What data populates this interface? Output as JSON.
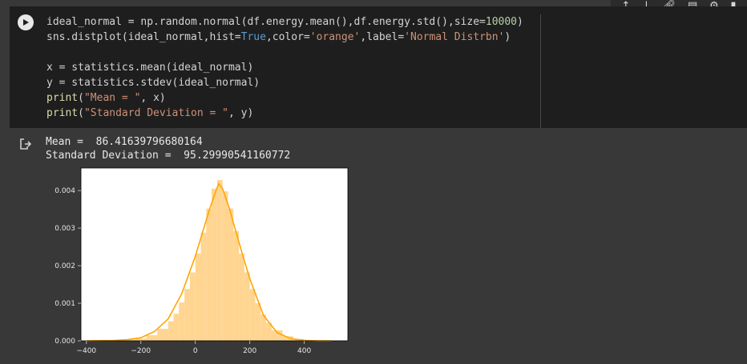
{
  "toolbar": {
    "icons": [
      "arrow-up-icon",
      "arrow-down-icon",
      "link-icon",
      "comment-icon",
      "gear-icon",
      "trash-icon"
    ]
  },
  "code": {
    "line1": [
      "ideal_normal = np.random.normal(df.energy.mean(),df.energy.std(),size=",
      "10000",
      ")"
    ],
    "line2": [
      "sns.distplot(ideal_normal,hist=",
      "True",
      ",color=",
      "'orange'",
      ",label=",
      "'Normal Distrbn'",
      ")"
    ],
    "line4": "x = statistics.mean(ideal_normal)",
    "line5": "y = statistics.stdev(ideal_normal)",
    "line6": [
      "print",
      "(",
      "\"Mean = \"",
      ", x)"
    ],
    "line7": [
      "print",
      "(",
      "\"Standard Deviation = \"",
      ", y)"
    ]
  },
  "output": {
    "mean_line": "Mean =  86.41639796680164",
    "std_line": "Standard Deviation =  95.29990541160772"
  },
  "chart_data": {
    "type": "bar",
    "title": "",
    "xlabel": "",
    "ylabel": "",
    "xlim": [
      -420,
      560
    ],
    "ylim": [
      0,
      0.0046
    ],
    "xticks": [
      -400,
      -200,
      0,
      200,
      400
    ],
    "xtick_labels": [
      "−400",
      "−200",
      "0",
      "200",
      "400"
    ],
    "yticks": [
      0.0,
      0.001,
      0.002,
      0.003,
      0.004
    ],
    "ytick_labels": [
      "0.000",
      "0.001",
      "0.002",
      "0.003",
      "0.004"
    ],
    "grid": false,
    "hist_color": "#ffd591",
    "kde_color": "#ffa500",
    "hist_bins": [
      {
        "x0": -300,
        "x1": -260,
        "y": 1e-05
      },
      {
        "x0": -260,
        "x1": -220,
        "y": 3e-05
      },
      {
        "x0": -220,
        "x1": -180,
        "y": 6e-05
      },
      {
        "x0": -180,
        "x1": -140,
        "y": 0.00015
      },
      {
        "x0": -140,
        "x1": -100,
        "y": 0.00032
      },
      {
        "x0": -100,
        "x1": -80,
        "y": 0.00052
      },
      {
        "x0": -80,
        "x1": -60,
        "y": 0.00072
      },
      {
        "x0": -60,
        "x1": -40,
        "y": 0.00102
      },
      {
        "x0": -40,
        "x1": -20,
        "y": 0.00138
      },
      {
        "x0": -20,
        "x1": 0,
        "y": 0.00182
      },
      {
        "x0": 0,
        "x1": 20,
        "y": 0.00232
      },
      {
        "x0": 20,
        "x1": 40,
        "y": 0.00288
      },
      {
        "x0": 40,
        "x1": 60,
        "y": 0.00352
      },
      {
        "x0": 60,
        "x1": 80,
        "y": 0.00405
      },
      {
        "x0": 80,
        "x1": 100,
        "y": 0.00428
      },
      {
        "x0": 100,
        "x1": 120,
        "y": 0.00398
      },
      {
        "x0": 120,
        "x1": 140,
        "y": 0.00352
      },
      {
        "x0": 140,
        "x1": 160,
        "y": 0.00292
      },
      {
        "x0": 160,
        "x1": 180,
        "y": 0.00232
      },
      {
        "x0": 180,
        "x1": 200,
        "y": 0.00182
      },
      {
        "x0": 200,
        "x1": 220,
        "y": 0.00138
      },
      {
        "x0": 220,
        "x1": 240,
        "y": 0.001
      },
      {
        "x0": 240,
        "x1": 260,
        "y": 0.0007
      },
      {
        "x0": 260,
        "x1": 280,
        "y": 0.00048
      },
      {
        "x0": 280,
        "x1": 320,
        "y": 0.00028
      },
      {
        "x0": 320,
        "x1": 360,
        "y": 0.00012
      },
      {
        "x0": 360,
        "x1": 400,
        "y": 5e-05
      },
      {
        "x0": 400,
        "x1": 440,
        "y": 2e-05
      }
    ],
    "kde": {
      "x": [
        -400,
        -300,
        -250,
        -200,
        -150,
        -100,
        -50,
        0,
        25,
        50,
        75,
        86,
        100,
        125,
        150,
        175,
        200,
        250,
        300,
        350,
        400,
        450,
        500
      ],
      "y": [
        0.0,
        1e-05,
        3e-05,
        8e-05,
        0.00025,
        0.00058,
        0.00125,
        0.00225,
        0.00285,
        0.00345,
        0.00398,
        0.00418,
        0.00405,
        0.00352,
        0.00288,
        0.00225,
        0.00165,
        0.00068,
        0.00022,
        6e-05,
        1e-05,
        0.0,
        0.0
      ]
    }
  }
}
